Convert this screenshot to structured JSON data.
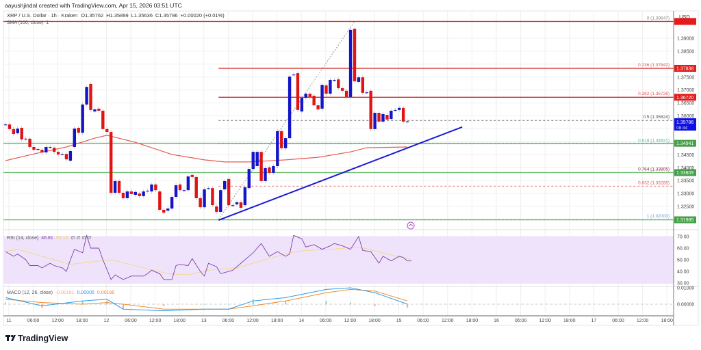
{
  "header": {
    "credit": "aayushjindal created with TradingView.com, Apr 15, 2026 03:51 UTC"
  },
  "legend": {
    "symbol": "XRP / U.S. Dollar · 1h · Kraken",
    "open": "O1.35762",
    "high": "H1.35899",
    "low": "L1.35636",
    "close": "C1.35786",
    "change": "+0.00020 (+0.01%)",
    "sma": "SMA (100, close)",
    "sma_value": "1"
  },
  "price_axis": {
    "currency": "USD",
    "ticks": [
      "1.39000",
      "1.38500",
      "1.37500",
      "1.37000",
      "1.36500",
      "1.36000",
      "1.34500",
      "1.34000",
      "1.33500",
      "1.33000",
      "1.32500"
    ],
    "current_price": "1.35786",
    "countdown": "08:44"
  },
  "badges": [
    {
      "text": "",
      "price": 1.3965,
      "color": "#e31b1b"
    },
    {
      "text": "1.37838",
      "price": 1.37838,
      "color": "#e31b1b"
    },
    {
      "text": "1.36720",
      "price": 1.3672,
      "color": "#e31b1b"
    },
    {
      "text": "1.34941",
      "price": 1.34941,
      "color": "#43a047"
    },
    {
      "text": "1.33809",
      "price": 1.33809,
      "color": "#43a047"
    },
    {
      "text": "1.31985",
      "price": 1.31985,
      "color": "#43a047"
    }
  ],
  "horizontal_lines": [
    {
      "price": 1.3965,
      "color": "#d32f2f",
      "extend": "both"
    },
    {
      "price": 1.37838,
      "color": "#d32f2f",
      "extend": "right"
    },
    {
      "price": 1.3672,
      "color": "#d32f2f",
      "extend": "right"
    },
    {
      "price": 1.34941,
      "color": "#66bb6a",
      "extend": "both"
    },
    {
      "price": 1.33809,
      "color": "#66bb6a",
      "extend": "both"
    },
    {
      "price": 1.31985,
      "color": "#66bb6a",
      "extend": "both"
    }
  ],
  "fib": {
    "from_price": 1.32,
    "to_price": 1.39647,
    "levels": [
      {
        "label": "0 (1.39647)",
        "price": 1.39647,
        "color": "#888888"
      },
      {
        "label": "0.236 (1.37842)",
        "price": 1.37842,
        "color": "#e05a5a"
      },
      {
        "label": "0.382 (1.36726)",
        "price": 1.36726,
        "color": "#e05a5a"
      },
      {
        "label": "0.5 (1.35824)",
        "price": 1.35824,
        "color": "#555555"
      },
      {
        "label": "0.618 (1.34921)",
        "price": 1.34921,
        "color": "#4db6ac"
      },
      {
        "label": "0.764 (1.33805)",
        "price": 1.33805,
        "color": "#8e1b3a"
      },
      {
        "label": "0.832 (1.33285)",
        "price": 1.33285,
        "color": "#e05a5a"
      },
      {
        "label": "1 (1.32000)",
        "price": 1.32,
        "color": "#64a0e0"
      }
    ]
  },
  "trendline": {
    "from": [
      53.5,
      1.3197
    ],
    "to": [
      113.5,
      1.3557
    ],
    "color": "#1a1ad6"
  },
  "colors": {
    "up": "#1414c8",
    "down": "#e01414",
    "sma": "#e8584f",
    "rsi": "#7e3fa8",
    "rsi_ma": "#f3d98a",
    "macd": "#2b9be8",
    "signal": "#f08a2a"
  },
  "chart_data": {
    "type": "candlestick",
    "interval": "1h",
    "candles_oc": [
      [
        1.3567,
        1.3567
      ],
      [
        1.3567,
        1.3549
      ],
      [
        1.3549,
        1.353
      ],
      [
        1.3533,
        1.3551
      ],
      [
        1.3554,
        1.3509
      ],
      [
        1.3512,
        1.3512
      ],
      [
        1.3512,
        1.348
      ],
      [
        1.348,
        1.3469
      ],
      [
        1.3472,
        1.3472
      ],
      [
        1.3469,
        1.3459
      ],
      [
        1.3459,
        1.348
      ],
      [
        1.348,
        1.348
      ],
      [
        1.3477,
        1.3461
      ],
      [
        1.3461,
        1.3451
      ],
      [
        1.3453,
        1.3453
      ],
      [
        1.3453,
        1.3432
      ],
      [
        1.3427,
        1.3464
      ],
      [
        1.348,
        1.3551
      ],
      [
        1.3554,
        1.3535
      ],
      [
        1.3535,
        1.3644
      ],
      [
        1.3644,
        1.3712
      ],
      [
        1.3723,
        1.3623
      ],
      [
        1.3617,
        1.3625
      ],
      [
        1.3628,
        1.362
      ],
      [
        1.362,
        1.3549
      ],
      [
        1.3549,
        1.3538
      ],
      [
        1.3538,
        1.3303
      ],
      [
        1.3303,
        1.3348
      ],
      [
        1.3348,
        1.3303
      ],
      [
        1.3303,
        1.3282
      ],
      [
        1.3282,
        1.3308
      ],
      [
        1.3308,
        1.3298
      ],
      [
        1.3295,
        1.3306
      ],
      [
        1.33,
        1.329
      ],
      [
        1.329,
        1.3308
      ],
      [
        1.3311,
        1.3311
      ],
      [
        1.3308,
        1.3335
      ],
      [
        1.3335,
        1.3313
      ],
      [
        1.3308,
        1.3237
      ],
      [
        1.3237,
        1.3226
      ],
      [
        1.3234,
        1.3242
      ],
      [
        1.3242,
        1.3287
      ],
      [
        1.3287,
        1.3332
      ],
      [
        1.3335,
        1.3313
      ],
      [
        1.3313,
        1.3313
      ],
      [
        1.3313,
        1.3366
      ],
      [
        1.3372,
        1.3364
      ],
      [
        1.3364,
        1.3282
      ],
      [
        1.3282,
        1.3247
      ],
      [
        1.3247,
        1.3316
      ],
      [
        1.3321,
        1.3321
      ],
      [
        1.3321,
        1.3255
      ],
      [
        1.325,
        1.3229
      ],
      [
        1.3229,
        1.3313
      ],
      [
        1.3316,
        1.3348
      ],
      [
        1.3356,
        1.3255
      ],
      [
        1.3255,
        1.3255
      ],
      [
        1.3258,
        1.3266
      ],
      [
        1.3266,
        1.3245
      ],
      [
        1.3255,
        1.3324
      ],
      [
        1.3321,
        1.3395
      ],
      [
        1.3395,
        1.3461
      ],
      [
        1.3406,
        1.3461
      ],
      [
        1.3461,
        1.3348
      ],
      [
        1.3348,
        1.3398
      ],
      [
        1.3401,
        1.338
      ],
      [
        1.338,
        1.3406
      ],
      [
        1.3406,
        1.3541
      ],
      [
        1.3541,
        1.3475
      ],
      [
        1.3475,
        1.3514
      ],
      [
        1.3514,
        1.3752
      ],
      [
        1.376,
        1.376
      ],
      [
        1.3765,
        1.3623
      ],
      [
        1.3617,
        1.367
      ],
      [
        1.367,
        1.3686
      ],
      [
        1.3686,
        1.3673
      ],
      [
        1.3678,
        1.3641
      ],
      [
        1.3641,
        1.3625
      ],
      [
        1.3628,
        1.372
      ],
      [
        1.3718,
        1.3686
      ],
      [
        1.3686,
        1.3739
      ],
      [
        1.3739,
        1.3739
      ],
      [
        1.3741,
        1.3707
      ],
      [
        1.3707,
        1.3697
      ],
      [
        1.3697,
        1.3673
      ],
      [
        1.3673,
        1.3932
      ],
      [
        1.3937,
        1.3734
      ],
      [
        1.3731,
        1.3749
      ],
      [
        1.3749,
        1.3689
      ],
      [
        1.3691,
        1.3691
      ],
      [
        1.3697,
        1.3549
      ],
      [
        1.3549,
        1.3612
      ],
      [
        1.3612,
        1.3578
      ],
      [
        1.3578,
        1.3607
      ],
      [
        1.3604,
        1.3586
      ],
      [
        1.3588,
        1.362
      ],
      [
        1.3623,
        1.3623
      ],
      [
        1.3623,
        1.3631
      ],
      [
        1.3631,
        1.3578
      ],
      [
        1.3578,
        1.3579
      ]
    ],
    "sma100": [
      [
        1,
        1.3427
      ],
      [
        8,
        1.3453
      ],
      [
        16,
        1.348
      ],
      [
        23,
        1.3514
      ],
      [
        26,
        1.3525
      ],
      [
        33,
        1.3498
      ],
      [
        42,
        1.3451
      ],
      [
        50,
        1.343
      ],
      [
        55,
        1.3422
      ],
      [
        61,
        1.3422
      ],
      [
        70,
        1.343
      ],
      [
        78,
        1.344
      ],
      [
        86,
        1.3461
      ],
      [
        90,
        1.3477
      ],
      [
        100,
        1.348
      ]
    ],
    "price_ylim": [
      1.3175,
      1.3975
    ],
    "x_ticks": [
      "11",
      "06:00",
      "12:00",
      "18:00",
      "12",
      "06:00",
      "12:00",
      "18:00",
      "13",
      "06:00",
      "12:00",
      "18:00",
      "14",
      "06:00",
      "12:00",
      "18:00",
      "15",
      "06:00",
      "12:00",
      "18:00",
      "16",
      "06:00",
      "12:00",
      "18:00",
      "17",
      "06:00",
      "12:00",
      "18:00"
    ]
  },
  "rsi": {
    "label": "RSI (14, close)",
    "value": "46.81",
    "ma_value": "50.12",
    "extra": "∅ ∅ ∅ ∅",
    "ticks": [
      "70.00",
      "60.00",
      "50.00",
      "40.00",
      "30.00"
    ],
    "series": [
      [
        1,
        57
      ],
      [
        3,
        53
      ],
      [
        4,
        55
      ],
      [
        6,
        50
      ],
      [
        7,
        45
      ],
      [
        9,
        45
      ],
      [
        10,
        43
      ],
      [
        12,
        47
      ],
      [
        13,
        45
      ],
      [
        15,
        43
      ],
      [
        16,
        40
      ],
      [
        17,
        50
      ],
      [
        18,
        59
      ],
      [
        20,
        56
      ],
      [
        21,
        71
      ],
      [
        22,
        60
      ],
      [
        24,
        60
      ],
      [
        25,
        50
      ],
      [
        27,
        33
      ],
      [
        28,
        37
      ],
      [
        30,
        33
      ],
      [
        32,
        36
      ],
      [
        35,
        36
      ],
      [
        36,
        38
      ],
      [
        37,
        41
      ],
      [
        39,
        38
      ],
      [
        40,
        33
      ],
      [
        42,
        33
      ],
      [
        43,
        45
      ],
      [
        44,
        46
      ],
      [
        46,
        45
      ],
      [
        47,
        51
      ],
      [
        49,
        40
      ],
      [
        50,
        36
      ],
      [
        51,
        47
      ],
      [
        53,
        44
      ],
      [
        54,
        38
      ],
      [
        57,
        41
      ],
      [
        59,
        47
      ],
      [
        62,
        56
      ],
      [
        64,
        64
      ],
      [
        66,
        53
      ],
      [
        68,
        57
      ],
      [
        70,
        53
      ],
      [
        71,
        55
      ],
      [
        72,
        71
      ],
      [
        74,
        68
      ],
      [
        75,
        61
      ],
      [
        77,
        63
      ],
      [
        79,
        59
      ],
      [
        81,
        62
      ],
      [
        82,
        64
      ],
      [
        84,
        62
      ],
      [
        86,
        59
      ],
      [
        88,
        70
      ],
      [
        89,
        58
      ],
      [
        91,
        57
      ],
      [
        93,
        47
      ],
      [
        94,
        53
      ],
      [
        96,
        49
      ],
      [
        98,
        53
      ],
      [
        99,
        52
      ],
      [
        100,
        49
      ],
      [
        101,
        49
      ]
    ],
    "ma": [
      [
        1,
        57
      ],
      [
        4,
        59
      ],
      [
        10,
        53
      ],
      [
        17,
        46
      ],
      [
        22,
        48
      ],
      [
        27,
        50
      ],
      [
        34,
        44
      ],
      [
        41,
        38
      ],
      [
        46,
        37
      ],
      [
        51,
        41
      ],
      [
        58,
        43
      ],
      [
        64,
        49
      ],
      [
        71,
        56
      ],
      [
        75,
        58
      ],
      [
        81,
        59
      ],
      [
        88,
        61
      ],
      [
        95,
        55
      ],
      [
        101,
        50
      ]
    ]
  },
  "macd": {
    "label": "MACD (12, 26, close)",
    "hist_value": "-0.00191",
    "macd_value": "0.00005",
    "signal_value": "0.00196",
    "ticks": [
      "0.01000",
      "0.00000"
    ],
    "series": [
      [
        1,
        0.004,
        0.003
      ],
      [
        10,
        -0.001,
        0.001
      ],
      [
        20,
        0.002,
        0.0
      ],
      [
        26,
        0.003,
        0.001
      ],
      [
        30,
        -0.003,
        0.0
      ],
      [
        40,
        -0.004,
        -0.003
      ],
      [
        50,
        -0.003,
        -0.003
      ],
      [
        56,
        -0.003,
        -0.003
      ],
      [
        62,
        0.002,
        -0.001
      ],
      [
        70,
        0.004,
        0.002
      ],
      [
        80,
        0.009,
        0.007
      ],
      [
        86,
        0.01,
        0.009
      ],
      [
        92,
        0.007,
        0.008
      ],
      [
        100,
        5e-05,
        0.00196
      ]
    ]
  },
  "footer": {
    "brand": "TradingView"
  }
}
